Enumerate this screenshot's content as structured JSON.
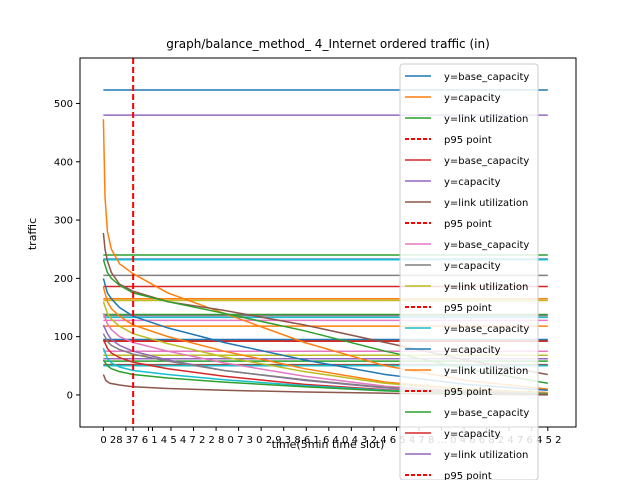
{
  "chart_data": {
    "type": "line",
    "title": "graph/balance_method_ 4_Internet ordered traffic (in)",
    "xlabel": "time(5min time slot)",
    "ylabel": "traffic",
    "ylim": [
      -55,
      578
    ],
    "xlim": [
      -29,
      587
    ],
    "yticks": [
      0,
      100,
      200,
      300,
      400,
      500
    ],
    "xticks": [
      0,
      28,
      37,
      56,
      61,
      84,
      112,
      140,
      168,
      196,
      224,
      252,
      280,
      308,
      336,
      364,
      392,
      420,
      448,
      476,
      504,
      532,
      552
    ],
    "xtick_labels_visible": "0 28 37 6 1 4 5 4 7 2 2 8 0 7 3 0 2 9 3 8 6 1 6 4 0 4 3 2 4 6 5 4 7 8 ... 0 4 6 6 8 2 4 7 6 4 5 2",
    "p95_x": 37,
    "grid": false,
    "legend_position": "upper-right",
    "legend": [
      {
        "label": "y=base_capacity",
        "color": "#1f77b4",
        "style": "solid"
      },
      {
        "label": "y=capacity",
        "color": "#ff7f0e",
        "style": "solid"
      },
      {
        "label": "y=link utilization",
        "color": "#2ca02c",
        "style": "solid"
      },
      {
        "label": "p95 point",
        "color": "#ff0000",
        "style": "dashed"
      },
      {
        "label": "y=base_capacity",
        "color": "#d62728",
        "style": "solid"
      },
      {
        "label": "y=capacity",
        "color": "#9467bd",
        "style": "solid"
      },
      {
        "label": "y=link utilization",
        "color": "#8c564b",
        "style": "solid"
      },
      {
        "label": "p95 point",
        "color": "#ff0000",
        "style": "dashed"
      },
      {
        "label": "y=base_capacity",
        "color": "#e377c2",
        "style": "solid"
      },
      {
        "label": "y=capacity",
        "color": "#7f7f7f",
        "style": "solid"
      },
      {
        "label": "y=link utilization",
        "color": "#bcbd22",
        "style": "solid"
      },
      {
        "label": "p95 point",
        "color": "#ff0000",
        "style": "dashed"
      },
      {
        "label": "y=base_capacity",
        "color": "#17becf",
        "style": "solid"
      },
      {
        "label": "y=capacity",
        "color": "#1f77b4",
        "style": "solid"
      },
      {
        "label": "y=link utilization",
        "color": "#ff7f0e",
        "style": "solid"
      },
      {
        "label": "p95 point",
        "color": "#ff0000",
        "style": "dashed"
      },
      {
        "label": "y=base_capacity",
        "color": "#2ca02c",
        "style": "solid"
      },
      {
        "label": "y=capacity",
        "color": "#d62728",
        "style": "solid"
      },
      {
        "label": "y=link utilization",
        "color": "#9467bd",
        "style": "solid"
      },
      {
        "label": "p95 point",
        "color": "#ff0000",
        "style": "dashed"
      }
    ],
    "constant_lines": [
      {
        "color": "#1f77b4",
        "y": 523
      },
      {
        "color": "#9467bd",
        "y": 480
      },
      {
        "color": "#2ca02c",
        "y": 240
      },
      {
        "color": "#1f77b4",
        "y": 233
      },
      {
        "color": "#17becf",
        "y": 232
      },
      {
        "color": "#7f7f7f",
        "y": 205
      },
      {
        "color": "#d62728",
        "y": 186
      },
      {
        "color": "#ff7f0e",
        "y": 165
      },
      {
        "color": "#bcbd22",
        "y": 162
      },
      {
        "color": "#2ca02c",
        "y": 138
      },
      {
        "color": "#7f7f7f",
        "y": 136
      },
      {
        "color": "#17becf",
        "y": 133
      },
      {
        "color": "#e377c2",
        "y": 128
      },
      {
        "color": "#ff7f0e",
        "y": 118
      },
      {
        "color": "#1f77b4",
        "y": 95
      },
      {
        "color": "#8c564b",
        "y": 93
      },
      {
        "color": "#d62728",
        "y": 92
      },
      {
        "color": "#e377c2",
        "y": 75
      },
      {
        "color": "#bcbd22",
        "y": 68
      },
      {
        "color": "#9467bd",
        "y": 62
      },
      {
        "color": "#2ca02c",
        "y": 58
      },
      {
        "color": "#8c564b",
        "y": 52
      },
      {
        "color": "#17becf",
        "y": 50
      }
    ],
    "decay_series": [
      {
        "color": "#ff7f0e",
        "x": [
          0,
          2,
          5,
          10,
          20,
          37,
          80,
          150,
          250,
          350,
          450,
          552
        ],
        "y": [
          473,
          340,
          280,
          250,
          225,
          208,
          175,
          140,
          90,
          50,
          25,
          10
        ]
      },
      {
        "color": "#8c564b",
        "x": [
          0,
          2,
          5,
          10,
          20,
          37,
          80,
          150,
          250,
          350,
          450,
          552
        ],
        "y": [
          278,
          250,
          230,
          210,
          190,
          178,
          160,
          145,
          120,
          90,
          60,
          35
        ]
      },
      {
        "color": "#2ca02c",
        "x": [
          0,
          5,
          10,
          20,
          37,
          80,
          150,
          250,
          350,
          450,
          552
        ],
        "y": [
          232,
          210,
          200,
          188,
          175,
          160,
          140,
          110,
          75,
          45,
          20
        ]
      },
      {
        "color": "#1f77b4",
        "x": [
          0,
          5,
          10,
          20,
          37,
          80,
          150,
          250,
          350,
          450,
          552
        ],
        "y": [
          200,
          175,
          165,
          150,
          135,
          115,
          90,
          60,
          35,
          18,
          8
        ]
      },
      {
        "color": "#ff7f0e",
        "x": [
          0,
          5,
          10,
          20,
          37,
          80,
          150,
          250,
          350,
          450,
          552
        ],
        "y": [
          185,
          160,
          148,
          135,
          120,
          100,
          75,
          45,
          22,
          10,
          4
        ]
      },
      {
        "color": "#bcbd22",
        "x": [
          0,
          5,
          10,
          20,
          37,
          80,
          150,
          250,
          350,
          450,
          552
        ],
        "y": [
          160,
          140,
          130,
          118,
          105,
          88,
          65,
          40,
          20,
          8,
          3
        ]
      },
      {
        "color": "#e377c2",
        "x": [
          0,
          5,
          10,
          20,
          37,
          80,
          150,
          250,
          350,
          450,
          552
        ],
        "y": [
          140,
          122,
          112,
          100,
          90,
          75,
          55,
          32,
          15,
          6,
          2
        ]
      },
      {
        "color": "#9467bd",
        "x": [
          0,
          5,
          10,
          20,
          37,
          80,
          150,
          250,
          350,
          450,
          552
        ],
        "y": [
          120,
          105,
          95,
          85,
          75,
          60,
          42,
          25,
          12,
          5,
          2
        ]
      },
      {
        "color": "#7f7f7f",
        "x": [
          0,
          5,
          10,
          20,
          37,
          80,
          150,
          250,
          350,
          450,
          552
        ],
        "y": [
          105,
          92,
          85,
          78,
          70,
          58,
          42,
          26,
          13,
          6,
          2
        ]
      },
      {
        "color": "#d62728",
        "x": [
          0,
          5,
          10,
          20,
          37,
          80,
          150,
          250,
          350,
          450,
          552
        ],
        "y": [
          95,
          80,
          72,
          64,
          56,
          45,
          32,
          18,
          9,
          4,
          1
        ]
      },
      {
        "color": "#17becf",
        "x": [
          0,
          5,
          10,
          20,
          37,
          80,
          150,
          250,
          350,
          450,
          552
        ],
        "y": [
          80,
          62,
          55,
          48,
          42,
          35,
          26,
          16,
          8,
          3,
          1
        ]
      },
      {
        "color": "#2ca02c",
        "x": [
          0,
          5,
          10,
          20,
          37,
          80,
          150,
          250,
          350,
          450,
          552
        ],
        "y": [
          60,
          50,
          45,
          40,
          35,
          29,
          22,
          14,
          7,
          3,
          1
        ]
      },
      {
        "color": "#8c564b",
        "x": [
          0,
          3,
          8,
          20,
          37,
          80,
          150,
          250,
          350,
          450,
          552
        ],
        "y": [
          35,
          25,
          20,
          17,
          14,
          11,
          8,
          5,
          3,
          1,
          0
        ]
      }
    ]
  }
}
